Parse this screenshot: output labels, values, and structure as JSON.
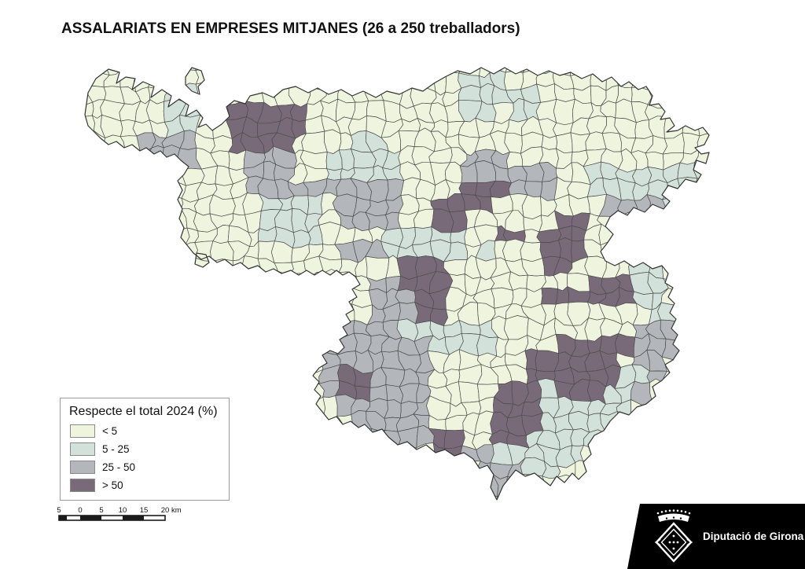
{
  "title": "ASSALARIATS EN EMPRESES MITJANES (26 a 250 treballadors)",
  "legend": {
    "title": "Respecte el total 2024 (%)",
    "items": [
      {
        "label": "< 5",
        "color": "#eff4de"
      },
      {
        "label": "5 - 25",
        "color": "#d2e2da"
      },
      {
        "label": "25 - 50",
        "color": "#b3b6ba"
      },
      {
        "label": "> 50",
        "color": "#796a7a"
      }
    ]
  },
  "scalebar": {
    "labels": [
      "5",
      "0",
      "5",
      "10",
      "15",
      "20"
    ],
    "unit": "km"
  },
  "logo": {
    "text": "Diputació de Girona"
  },
  "map": {
    "border_color": "#4d4d4d",
    "outline_color": "#333333"
  },
  "chart_data": {
    "type": "choropleth",
    "title": "ASSALARIATS EN EMPRESES MITJANES (26 a 250 treballadors)",
    "measure": "Respecte el total 2024 (%)",
    "classes": [
      "< 5",
      "5 - 25",
      "25 - 50",
      "> 50"
    ],
    "class_colors": [
      "#eff4de",
      "#d2e2da",
      "#b3b6ba",
      "#796a7a"
    ],
    "legend_position": "bottom-left",
    "class_grid_note": "raster of class indices 0-3 over map bounding box, 42 cols x 29 rows",
    "class_grid": [
      "000000000000000000000000000000000000000000",
      "000000000000000000000000001110000000000000",
      "000000011000000000000000001111100000000000",
      "000000011003333300000000001101100000000000",
      "000000011003333300000000000000000000000000",
      "000002222003333000011000000000000000000000",
      "000002222000222001111100002220000000000000",
      "000000000000222001111100002222220011111111",
      "000000000000222222222200003332220011111111",
      "000000000000011110222200333300000002222111",
      "000000000000011110222200330000003300111100",
      "000000000000011110000111110033033300111100",
      "000000000000000000222111110100033300011100",
      "000000000000000000000033300000033000011000",
      "000000000000000000002233300000000033311000",
      "000000000000000000002223300000033333311000",
      "000000000000000000002223300000000000001100",
      "000000000000000002222211111100000000022200",
      "000000000000000002222222111100003333322200",
      "000000000000000002222222000000333333022000",
      "000000000000000002332222000000333333112000",
      "000000000000000002332222000033313331120000",
      "000000000000000000222222000033311111100000",
      "000000000000000000022222000033311111000000",
      "000000000000000000002222330033111110000000",
      "000000000000000000000000332211111100000000",
      "000000000000000000000000000222110000000000",
      "000000000000000000000000000222000000000000",
      "000000000000000000000000000220000000000000"
    ]
  }
}
